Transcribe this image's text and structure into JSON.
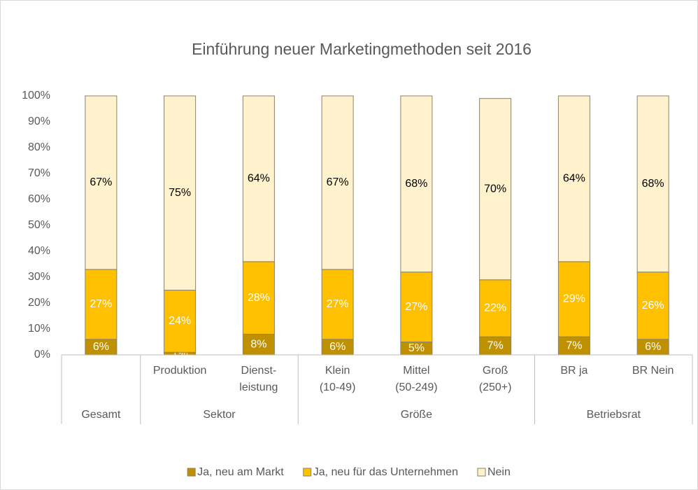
{
  "chart_data": {
    "type": "stacked_bar",
    "title": "Einführung neuer Marketingmethoden seit 2016",
    "categories": [
      null,
      "Produktion",
      "Dienst-\nleistung",
      "Klein\n(10-49)",
      "Mittel\n(50-249)",
      "Groß\n(250+)",
      "BR ja",
      "BR Nein"
    ],
    "category_groups": [
      "Gesamt",
      "Sektor",
      "Sektor",
      "Größe",
      "Größe",
      "Größe",
      "Betriebsrat",
      "Betriebsrat"
    ],
    "series": [
      {
        "name": "Ja, neu am Markt",
        "color": "#bf9000",
        "label_color": "#ffffff",
        "values": [
          6,
          1,
          8,
          6,
          5,
          7,
          7,
          6
        ],
        "value_labels": [
          "6%",
          "1%",
          "8%",
          "6%",
          "5%",
          "7%",
          "7%",
          "6%"
        ]
      },
      {
        "name": "Ja, neu für das Unternehmen",
        "color": "#ffc000",
        "label_color": "#ffffff",
        "values": [
          27,
          24,
          28,
          27,
          27,
          22,
          29,
          26
        ],
        "value_labels": [
          "27%",
          "24%",
          "28%",
          "27%",
          "27%",
          "22%",
          "29%",
          "26%"
        ]
      },
      {
        "name": "Nein",
        "color": "#fff2cc",
        "label_color": "#000000",
        "values": [
          67,
          75,
          64,
          67,
          68,
          70,
          64,
          68
        ],
        "value_labels": [
          "67%",
          "75%",
          "64%",
          "67%",
          "68%",
          "70%",
          "64%",
          "68%"
        ]
      }
    ],
    "ylim": [
      0,
      100
    ],
    "yticks": [
      {
        "value": 0,
        "label": "0%"
      },
      {
        "value": 10,
        "label": "10%"
      },
      {
        "value": 20,
        "label": "20%"
      },
      {
        "value": 30,
        "label": "30%"
      },
      {
        "value": 40,
        "label": "40%"
      },
      {
        "value": 50,
        "label": "50%"
      },
      {
        "value": 60,
        "label": "60%"
      },
      {
        "value": 70,
        "label": "70%"
      },
      {
        "value": 80,
        "label": "80%"
      },
      {
        "value": 90,
        "label": "90%"
      },
      {
        "value": 100,
        "label": "100%"
      }
    ],
    "grid": false,
    "legend": "bottom"
  }
}
